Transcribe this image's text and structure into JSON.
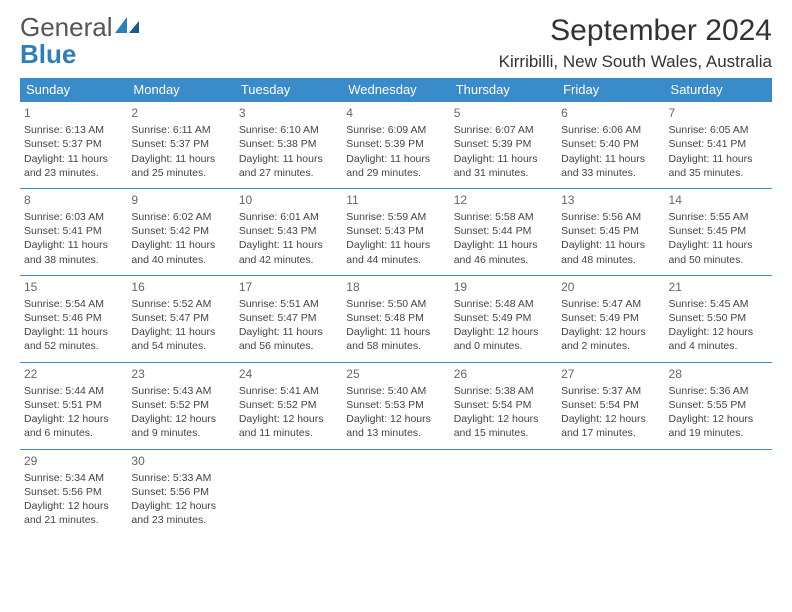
{
  "logo": {
    "word1": "General",
    "word2": "Blue"
  },
  "title": "September 2024",
  "location": "Kirribilli, New South Wales, Australia",
  "colors": {
    "header_bg": "#3a8bc9",
    "header_fg": "#ffffff",
    "brand_blue": "#2c7fb8"
  },
  "day_headers": [
    "Sunday",
    "Monday",
    "Tuesday",
    "Wednesday",
    "Thursday",
    "Friday",
    "Saturday"
  ],
  "weeks": [
    [
      {
        "n": "1",
        "sr": "6:13 AM",
        "ss": "5:37 PM",
        "dl": "11 hours and 23 minutes."
      },
      {
        "n": "2",
        "sr": "6:11 AM",
        "ss": "5:37 PM",
        "dl": "11 hours and 25 minutes."
      },
      {
        "n": "3",
        "sr": "6:10 AM",
        "ss": "5:38 PM",
        "dl": "11 hours and 27 minutes."
      },
      {
        "n": "4",
        "sr": "6:09 AM",
        "ss": "5:39 PM",
        "dl": "11 hours and 29 minutes."
      },
      {
        "n": "5",
        "sr": "6:07 AM",
        "ss": "5:39 PM",
        "dl": "11 hours and 31 minutes."
      },
      {
        "n": "6",
        "sr": "6:06 AM",
        "ss": "5:40 PM",
        "dl": "11 hours and 33 minutes."
      },
      {
        "n": "7",
        "sr": "6:05 AM",
        "ss": "5:41 PM",
        "dl": "11 hours and 35 minutes."
      }
    ],
    [
      {
        "n": "8",
        "sr": "6:03 AM",
        "ss": "5:41 PM",
        "dl": "11 hours and 38 minutes."
      },
      {
        "n": "9",
        "sr": "6:02 AM",
        "ss": "5:42 PM",
        "dl": "11 hours and 40 minutes."
      },
      {
        "n": "10",
        "sr": "6:01 AM",
        "ss": "5:43 PM",
        "dl": "11 hours and 42 minutes."
      },
      {
        "n": "11",
        "sr": "5:59 AM",
        "ss": "5:43 PM",
        "dl": "11 hours and 44 minutes."
      },
      {
        "n": "12",
        "sr": "5:58 AM",
        "ss": "5:44 PM",
        "dl": "11 hours and 46 minutes."
      },
      {
        "n": "13",
        "sr": "5:56 AM",
        "ss": "5:45 PM",
        "dl": "11 hours and 48 minutes."
      },
      {
        "n": "14",
        "sr": "5:55 AM",
        "ss": "5:45 PM",
        "dl": "11 hours and 50 minutes."
      }
    ],
    [
      {
        "n": "15",
        "sr": "5:54 AM",
        "ss": "5:46 PM",
        "dl": "11 hours and 52 minutes."
      },
      {
        "n": "16",
        "sr": "5:52 AM",
        "ss": "5:47 PM",
        "dl": "11 hours and 54 minutes."
      },
      {
        "n": "17",
        "sr": "5:51 AM",
        "ss": "5:47 PM",
        "dl": "11 hours and 56 minutes."
      },
      {
        "n": "18",
        "sr": "5:50 AM",
        "ss": "5:48 PM",
        "dl": "11 hours and 58 minutes."
      },
      {
        "n": "19",
        "sr": "5:48 AM",
        "ss": "5:49 PM",
        "dl": "12 hours and 0 minutes."
      },
      {
        "n": "20",
        "sr": "5:47 AM",
        "ss": "5:49 PM",
        "dl": "12 hours and 2 minutes."
      },
      {
        "n": "21",
        "sr": "5:45 AM",
        "ss": "5:50 PM",
        "dl": "12 hours and 4 minutes."
      }
    ],
    [
      {
        "n": "22",
        "sr": "5:44 AM",
        "ss": "5:51 PM",
        "dl": "12 hours and 6 minutes."
      },
      {
        "n": "23",
        "sr": "5:43 AM",
        "ss": "5:52 PM",
        "dl": "12 hours and 9 minutes."
      },
      {
        "n": "24",
        "sr": "5:41 AM",
        "ss": "5:52 PM",
        "dl": "12 hours and 11 minutes."
      },
      {
        "n": "25",
        "sr": "5:40 AM",
        "ss": "5:53 PM",
        "dl": "12 hours and 13 minutes."
      },
      {
        "n": "26",
        "sr": "5:38 AM",
        "ss": "5:54 PM",
        "dl": "12 hours and 15 minutes."
      },
      {
        "n": "27",
        "sr": "5:37 AM",
        "ss": "5:54 PM",
        "dl": "12 hours and 17 minutes."
      },
      {
        "n": "28",
        "sr": "5:36 AM",
        "ss": "5:55 PM",
        "dl": "12 hours and 19 minutes."
      }
    ],
    [
      {
        "n": "29",
        "sr": "5:34 AM",
        "ss": "5:56 PM",
        "dl": "12 hours and 21 minutes."
      },
      {
        "n": "30",
        "sr": "5:33 AM",
        "ss": "5:56 PM",
        "dl": "12 hours and 23 minutes."
      },
      null,
      null,
      null,
      null,
      null
    ]
  ],
  "labels": {
    "sunrise": "Sunrise:",
    "sunset": "Sunset:",
    "daylight": "Daylight:"
  }
}
